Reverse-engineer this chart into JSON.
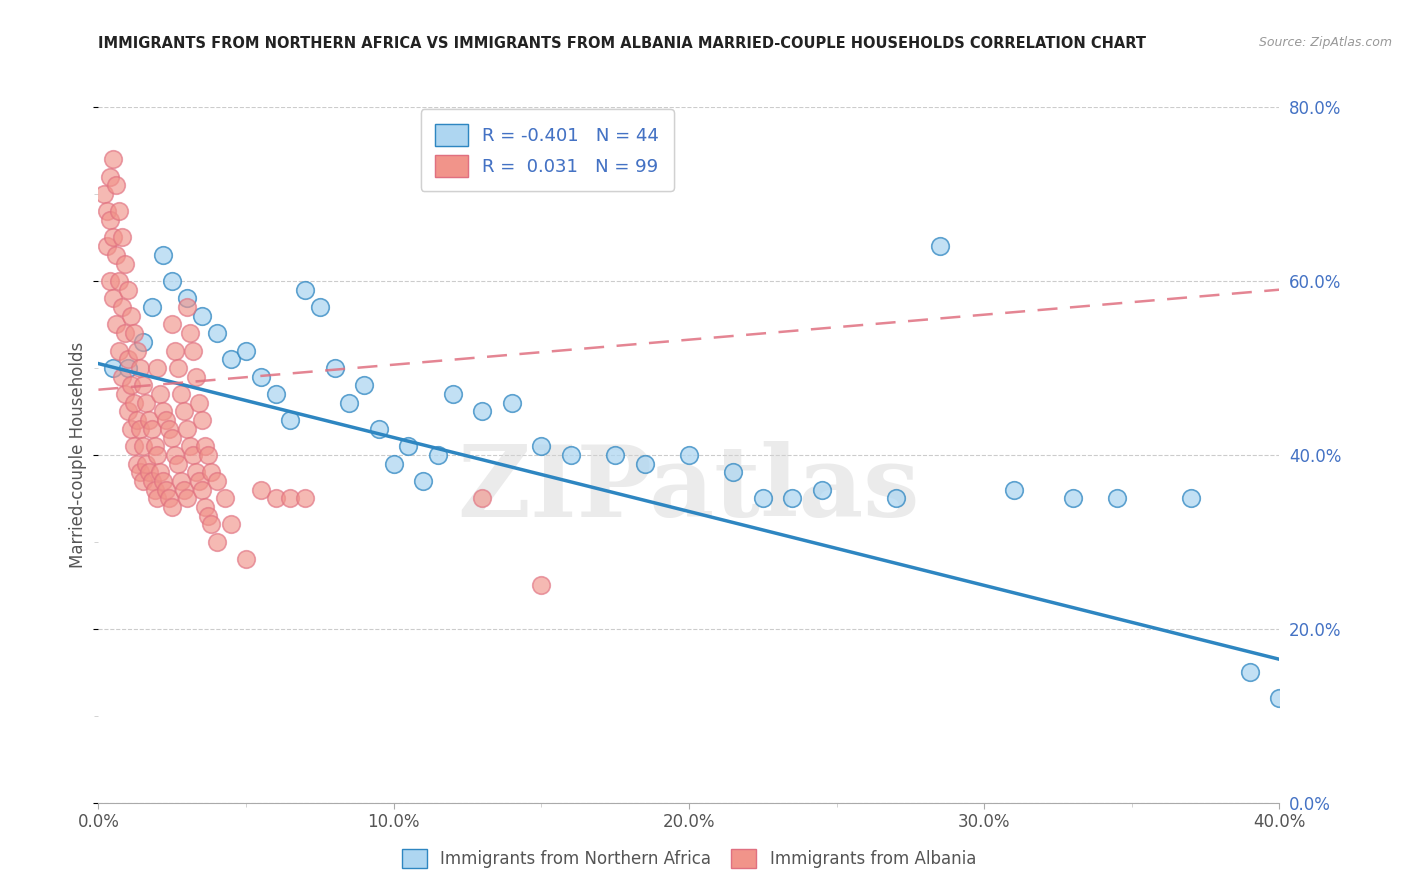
{
  "title": "IMMIGRANTS FROM NORTHERN AFRICA VS IMMIGRANTS FROM ALBANIA MARRIED-COUPLE HOUSEHOLDS CORRELATION CHART",
  "source": "Source: ZipAtlas.com",
  "ylabel": "Married-couple Households",
  "legend_label1": "Immigrants from Northern Africa",
  "legend_label2": "Immigrants from Albania",
  "R1": -0.401,
  "N1": 44,
  "R2": 0.031,
  "N2": 99,
  "xlim": [
    0.0,
    0.4
  ],
  "ylim": [
    0.0,
    0.8
  ],
  "color_blue": "#AED6F1",
  "color_pink": "#F1948A",
  "line_color_blue": "#2E86C1",
  "line_color_pink": "#E07080",
  "watermark": "ZIPatlas",
  "background_color": "#FFFFFF",
  "blue_points": [
    [
      0.005,
      0.5
    ],
    [
      0.01,
      0.5
    ],
    [
      0.015,
      0.53
    ],
    [
      0.018,
      0.57
    ],
    [
      0.022,
      0.63
    ],
    [
      0.025,
      0.6
    ],
    [
      0.03,
      0.58
    ],
    [
      0.035,
      0.56
    ],
    [
      0.04,
      0.54
    ],
    [
      0.045,
      0.51
    ],
    [
      0.05,
      0.52
    ],
    [
      0.055,
      0.49
    ],
    [
      0.06,
      0.47
    ],
    [
      0.065,
      0.44
    ],
    [
      0.07,
      0.59
    ],
    [
      0.075,
      0.57
    ],
    [
      0.08,
      0.5
    ],
    [
      0.085,
      0.46
    ],
    [
      0.09,
      0.48
    ],
    [
      0.095,
      0.43
    ],
    [
      0.1,
      0.39
    ],
    [
      0.105,
      0.41
    ],
    [
      0.11,
      0.37
    ],
    [
      0.115,
      0.4
    ],
    [
      0.12,
      0.47
    ],
    [
      0.13,
      0.45
    ],
    [
      0.14,
      0.46
    ],
    [
      0.15,
      0.41
    ],
    [
      0.16,
      0.4
    ],
    [
      0.175,
      0.4
    ],
    [
      0.185,
      0.39
    ],
    [
      0.2,
      0.4
    ],
    [
      0.215,
      0.38
    ],
    [
      0.225,
      0.35
    ],
    [
      0.235,
      0.35
    ],
    [
      0.245,
      0.36
    ],
    [
      0.27,
      0.35
    ],
    [
      0.285,
      0.64
    ],
    [
      0.31,
      0.36
    ],
    [
      0.33,
      0.35
    ],
    [
      0.345,
      0.35
    ],
    [
      0.37,
      0.35
    ],
    [
      0.39,
      0.15
    ],
    [
      0.4,
      0.12
    ]
  ],
  "pink_points": [
    [
      0.002,
      0.7
    ],
    [
      0.003,
      0.68
    ],
    [
      0.003,
      0.64
    ],
    [
      0.004,
      0.72
    ],
    [
      0.004,
      0.67
    ],
    [
      0.004,
      0.6
    ],
    [
      0.005,
      0.74
    ],
    [
      0.005,
      0.65
    ],
    [
      0.005,
      0.58
    ],
    [
      0.006,
      0.71
    ],
    [
      0.006,
      0.63
    ],
    [
      0.006,
      0.55
    ],
    [
      0.007,
      0.68
    ],
    [
      0.007,
      0.6
    ],
    [
      0.007,
      0.52
    ],
    [
      0.008,
      0.65
    ],
    [
      0.008,
      0.57
    ],
    [
      0.008,
      0.49
    ],
    [
      0.009,
      0.62
    ],
    [
      0.009,
      0.54
    ],
    [
      0.009,
      0.47
    ],
    [
      0.01,
      0.59
    ],
    [
      0.01,
      0.51
    ],
    [
      0.01,
      0.45
    ],
    [
      0.011,
      0.56
    ],
    [
      0.011,
      0.48
    ],
    [
      0.011,
      0.43
    ],
    [
      0.012,
      0.54
    ],
    [
      0.012,
      0.46
    ],
    [
      0.012,
      0.41
    ],
    [
      0.013,
      0.52
    ],
    [
      0.013,
      0.44
    ],
    [
      0.013,
      0.39
    ],
    [
      0.014,
      0.5
    ],
    [
      0.014,
      0.43
    ],
    [
      0.014,
      0.38
    ],
    [
      0.015,
      0.48
    ],
    [
      0.015,
      0.41
    ],
    [
      0.015,
      0.37
    ],
    [
      0.016,
      0.46
    ],
    [
      0.016,
      0.39
    ],
    [
      0.017,
      0.44
    ],
    [
      0.017,
      0.38
    ],
    [
      0.018,
      0.43
    ],
    [
      0.018,
      0.37
    ],
    [
      0.019,
      0.41
    ],
    [
      0.019,
      0.36
    ],
    [
      0.02,
      0.5
    ],
    [
      0.02,
      0.4
    ],
    [
      0.02,
      0.35
    ],
    [
      0.021,
      0.47
    ],
    [
      0.021,
      0.38
    ],
    [
      0.022,
      0.45
    ],
    [
      0.022,
      0.37
    ],
    [
      0.023,
      0.44
    ],
    [
      0.023,
      0.36
    ],
    [
      0.024,
      0.43
    ],
    [
      0.024,
      0.35
    ],
    [
      0.025,
      0.55
    ],
    [
      0.025,
      0.42
    ],
    [
      0.025,
      0.34
    ],
    [
      0.026,
      0.52
    ],
    [
      0.026,
      0.4
    ],
    [
      0.027,
      0.5
    ],
    [
      0.027,
      0.39
    ],
    [
      0.028,
      0.47
    ],
    [
      0.028,
      0.37
    ],
    [
      0.029,
      0.45
    ],
    [
      0.029,
      0.36
    ],
    [
      0.03,
      0.57
    ],
    [
      0.03,
      0.43
    ],
    [
      0.03,
      0.35
    ],
    [
      0.031,
      0.54
    ],
    [
      0.031,
      0.41
    ],
    [
      0.032,
      0.52
    ],
    [
      0.032,
      0.4
    ],
    [
      0.033,
      0.49
    ],
    [
      0.033,
      0.38
    ],
    [
      0.034,
      0.46
    ],
    [
      0.034,
      0.37
    ],
    [
      0.035,
      0.44
    ],
    [
      0.035,
      0.36
    ],
    [
      0.036,
      0.41
    ],
    [
      0.036,
      0.34
    ],
    [
      0.037,
      0.4
    ],
    [
      0.037,
      0.33
    ],
    [
      0.038,
      0.38
    ],
    [
      0.038,
      0.32
    ],
    [
      0.04,
      0.37
    ],
    [
      0.04,
      0.3
    ],
    [
      0.043,
      0.35
    ],
    [
      0.045,
      0.32
    ],
    [
      0.05,
      0.28
    ],
    [
      0.055,
      0.36
    ],
    [
      0.06,
      0.35
    ],
    [
      0.065,
      0.35
    ],
    [
      0.07,
      0.35
    ],
    [
      0.13,
      0.35
    ],
    [
      0.15,
      0.25
    ]
  ],
  "blue_trend_x": [
    0.0,
    0.4
  ],
  "blue_trend_y": [
    0.505,
    0.165
  ],
  "pink_trend_x": [
    0.0,
    0.4
  ],
  "pink_trend_y": [
    0.475,
    0.59
  ]
}
